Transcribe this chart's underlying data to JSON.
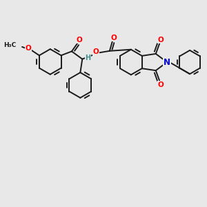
{
  "bg_color": "#e8e8e8",
  "bond_color": "#1a1a1a",
  "bond_width": 1.4,
  "atom_colors": {
    "O": "#ff0000",
    "N": "#0000cc",
    "H": "#3a9090",
    "C": "#1a1a1a"
  },
  "fig_width": 3.0,
  "fig_height": 3.0,
  "dpi": 100
}
